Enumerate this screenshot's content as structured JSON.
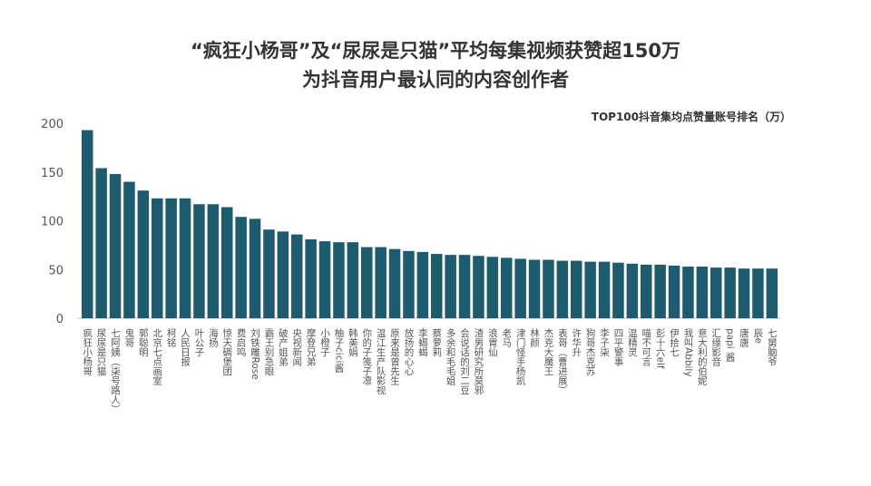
{
  "chart_data": {
    "type": "bar",
    "title": "“疯狂小杨哥”及“尿尿是只猫”平均每集视频获赞超150万",
    "subtitle": "为抖音用户最认同的内容创作者",
    "series_label": "TOP100抖音集均点赞量账号排名（万）",
    "xlabel": "",
    "ylabel": "",
    "ylim": [
      0,
      200
    ],
    "yticks": [
      0,
      50,
      100,
      150,
      200
    ],
    "color": "#1e5b6e",
    "categories": [
      "疯狂小杨哥",
      "尿尿是只猫",
      "七阿姨（柒号路人）",
      "鬼哥",
      "郭聪明",
      "北京七点画室",
      "柯铭",
      "人民日报",
      "叶公子",
      "海扬",
      "惊天碉堡团",
      "费启鸣",
      "刘铁雕Rose",
      "霸王别急眼",
      "破产姐弟",
      "央视新闻",
      "摩登兄弟",
      "小橙子",
      "柚子cici酱",
      "韩美娟",
      "你的子笺子凛",
      "温江生产队影视",
      "原来是曾先生",
      "放扬的心心",
      "李蝎蝎",
      "蔡萝莉",
      "多余和毛毛姐",
      "会说话的刘二豆",
      "渣男研究所莫邪",
      "浪胃仙",
      "老马",
      "津门怪手杨凯",
      "林颜",
      "杰克大魔王",
      "表哥（曹进展）",
      "许华升",
      "狗哥杰克苏",
      "李子柒",
      "四平警事",
      "温精灵",
      "喵不可言",
      "彭十六elf",
      "伊拾七",
      "我叫Abbily",
      "意大利的伯妮",
      "汇缘影音",
      "papi 酱",
      "唐唐",
      "辰e",
      "七舅脑爷"
    ],
    "values": [
      193,
      154,
      148,
      140,
      131,
      123,
      123,
      123,
      117,
      117,
      114,
      104,
      102,
      91,
      89,
      86,
      81,
      79,
      78,
      78,
      73,
      73,
      71,
      69,
      68,
      66,
      65,
      65,
      64,
      63,
      62,
      61,
      60,
      60,
      59,
      59,
      58,
      58,
      57,
      56,
      55,
      55,
      54,
      53,
      53,
      52,
      52,
      51,
      51,
      51
    ]
  }
}
